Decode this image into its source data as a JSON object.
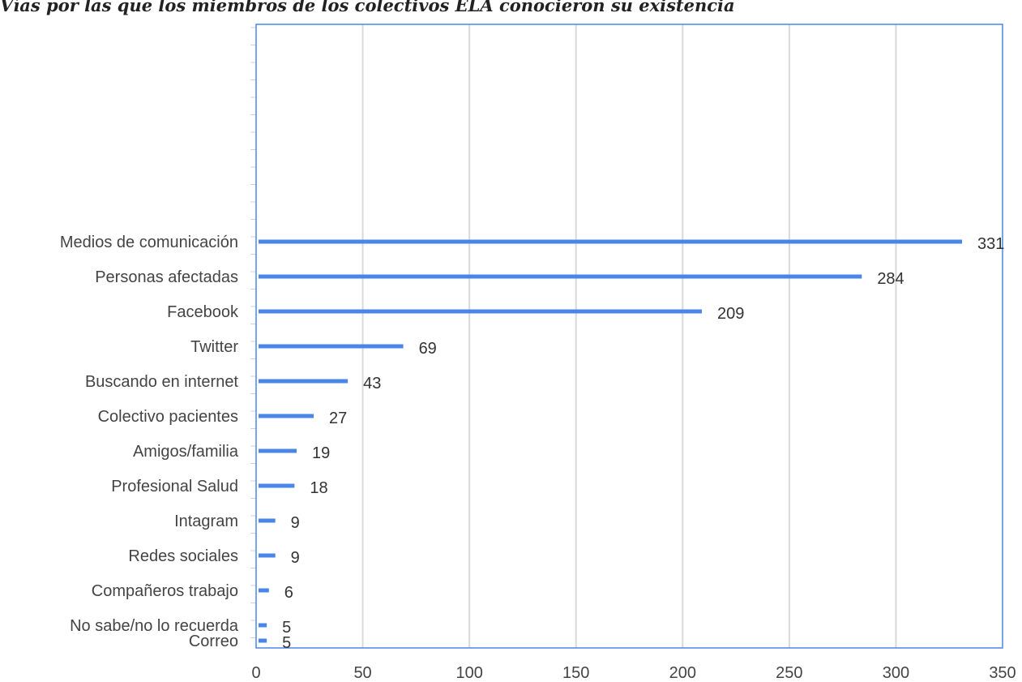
{
  "chart_data": {
    "type": "bar",
    "orientation": "horizontal",
    "title": "Vías por las que los miembros de los colectivos ELA conocieron su existencia",
    "xlabel": "",
    "ylabel": "",
    "categories": [
      "Medios de comunicación",
      "Personas afectadas",
      "Facebook",
      "Twitter",
      "Buscando en internet",
      "Colectivo pacientes",
      "Amigos/familia",
      "Profesional Salud",
      "Intagram",
      "Redes sociales",
      "Compañeros trabajo",
      "No sabe/no lo recuerda",
      "Correo"
    ],
    "values": [
      331,
      284,
      209,
      69,
      43,
      27,
      19,
      18,
      9,
      9,
      6,
      5,
      5
    ],
    "data_labels": [
      "331",
      "284",
      "209",
      "69",
      "43",
      "27",
      "19",
      "18",
      "9",
      "9",
      "6",
      "5",
      "5"
    ],
    "xlim": [
      0,
      350
    ],
    "xticks": [
      0,
      50,
      100,
      150,
      200,
      250,
      300,
      350
    ],
    "xtick_labels": [
      "0",
      "50",
      "100",
      "150",
      "200",
      "250",
      "300",
      "350"
    ],
    "grid": "vertical",
    "bar_color": "#4a86e8",
    "frame_color": "#4a86e8",
    "grid_color": "#d9d9d9"
  }
}
